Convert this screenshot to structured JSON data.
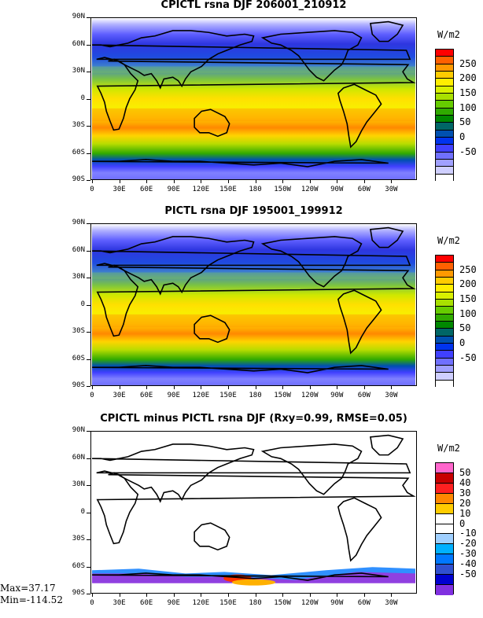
{
  "panels": [
    {
      "title": "CPICTL rsna DJF 206001_210912",
      "units": "W/m2",
      "kind": "abs"
    },
    {
      "title": "PICTL rsna DJF 195001_199912",
      "units": "W/m2",
      "kind": "abs"
    },
    {
      "title": "CPICTL minus PICTL rsna DJF (Rxy=0.99, RMSE=0.05)",
      "units": "W/m2",
      "kind": "diff"
    }
  ],
  "lat_labels": [
    "90N",
    "60N",
    "30N",
    "0",
    "30S",
    "60S",
    "90S"
  ],
  "lon_labels": [
    "0",
    "30E",
    "60E",
    "90E",
    "120E",
    "150E",
    "180",
    "150W",
    "120W",
    "90W",
    "60W",
    "30W"
  ],
  "abs_scale": {
    "labels": [
      "250",
      "200",
      "150",
      "100",
      "50",
      "0",
      "-50"
    ],
    "colors": [
      "#ff0000",
      "#ff6000",
      "#ff9900",
      "#ffcc00",
      "#ffee00",
      "#d9f000",
      "#a8e000",
      "#66cc00",
      "#30aa00",
      "#008800",
      "#006666",
      "#0050b0",
      "#0033ee",
      "#4040ff",
      "#7070ff",
      "#a0a0ff",
      "#cfcfff",
      "#ffffff"
    ]
  },
  "diff_scale": {
    "labels": [
      "50",
      "40",
      "30",
      "20",
      "10",
      "0",
      "-10",
      "-20",
      "-30",
      "-40",
      "-50"
    ],
    "colors": [
      "#ff66cc",
      "#c80000",
      "#ff2020",
      "#ff8800",
      "#ffcc00",
      "#ffffff",
      "#ffffff",
      "#a0d0ff",
      "#00b0ff",
      "#0078ff",
      "#3050d0",
      "#0000d0",
      "#8030e0"
    ]
  },
  "stats": {
    "max": "Max=37.17",
    "min": "Min=-114.52"
  }
}
